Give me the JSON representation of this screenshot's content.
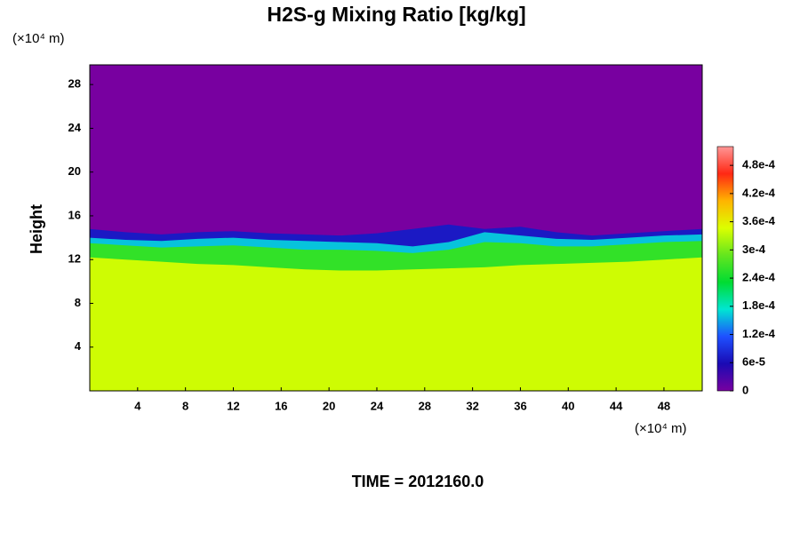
{
  "chart_data": {
    "type": "layered-field",
    "title": "H2S-g Mixing Ratio [kg/kg]",
    "y_unit": "(×10⁴ m)",
    "x_unit": "(×10⁴ m)",
    "y_label": "Height",
    "time_label": "TIME = 2012160.0",
    "xlim": [
      0,
      51.2
    ],
    "ylim": [
      0,
      29.8
    ],
    "xticks": [
      4,
      8,
      12,
      16,
      20,
      24,
      28,
      32,
      36,
      40,
      44,
      48
    ],
    "yticks": [
      4,
      8,
      12,
      16,
      20,
      24,
      28
    ],
    "clim": [
      0,
      0.00052
    ],
    "colormap": [
      "#7800a0",
      "#1a0ab4",
      "#1e50ff",
      "#00e6d2",
      "#00dc32",
      "#64e61e",
      "#dcff00",
      "#ffb400",
      "#ff2814",
      "#ff9696"
    ],
    "cticks": [
      {
        "value": 0,
        "label": "0"
      },
      {
        "value": 6e-05,
        "label": "6e-5"
      },
      {
        "value": 0.00012,
        "label": "1.2e-4"
      },
      {
        "value": 0.00018,
        "label": "1.8e-4"
      },
      {
        "value": 0.00024,
        "label": "2.4e-4"
      },
      {
        "value": 0.0003,
        "label": "3e-4"
      },
      {
        "value": 0.00036,
        "label": "3.6e-4"
      },
      {
        "value": 0.00042,
        "label": "4.2e-4"
      },
      {
        "value": 0.00048,
        "label": "4.8e-4"
      }
    ],
    "background_value": 0,
    "x": [
      0,
      3,
      6,
      9,
      12,
      15,
      18,
      21,
      24,
      27,
      30,
      33,
      36,
      39,
      42,
      45,
      48,
      51.2
    ],
    "layers": [
      {
        "value": 7e-05,
        "top": [
          14.8,
          14.5,
          14.3,
          14.5,
          14.6,
          14.4,
          14.3,
          14.2,
          14.4,
          14.8,
          15.2,
          14.8,
          15.0,
          14.5,
          14.2,
          14.4,
          14.6,
          14.8
        ]
      },
      {
        "value": 0.00016,
        "top": [
          14.0,
          13.8,
          13.7,
          13.9,
          14.0,
          13.8,
          13.7,
          13.6,
          13.5,
          13.2,
          13.6,
          14.5,
          14.2,
          13.9,
          13.8,
          14.0,
          14.2,
          14.3
        ]
      },
      {
        "value": 0.00026,
        "top": [
          13.5,
          13.3,
          13.1,
          13.2,
          13.3,
          13.1,
          12.9,
          12.9,
          12.8,
          12.6,
          12.9,
          13.6,
          13.5,
          13.2,
          13.2,
          13.4,
          13.6,
          13.7
        ]
      },
      {
        "value": 0.00034,
        "top": [
          12.2,
          12.0,
          11.8,
          11.6,
          11.5,
          11.3,
          11.1,
          11.0,
          11.0,
          11.1,
          11.2,
          11.3,
          11.5,
          11.6,
          11.7,
          11.8,
          12.0,
          12.2
        ]
      }
    ]
  }
}
